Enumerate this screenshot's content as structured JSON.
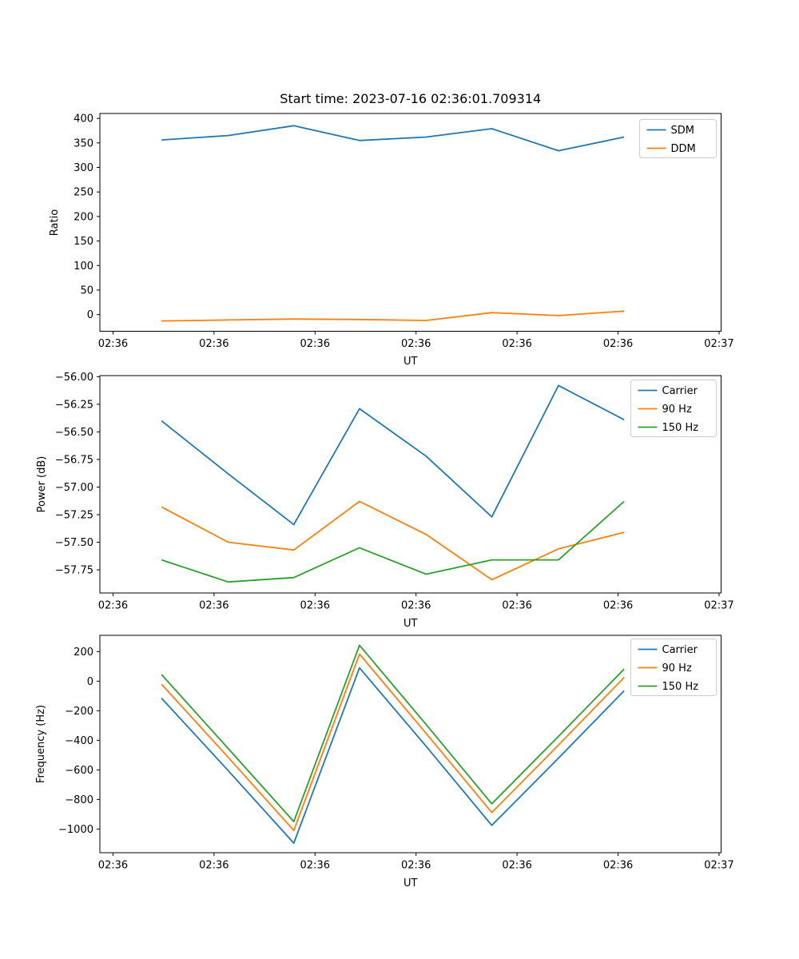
{
  "figure": {
    "title": "Start time: 2023-07-16 02:36:01.709314",
    "background": "#ffffff",
    "axis_color": "#000000",
    "legend_border_color": "#cccccc",
    "series_colors": {
      "blue": "#1f77b4",
      "orange": "#ff7f0e",
      "green": "#2ca02c"
    }
  },
  "chart_data": [
    {
      "type": "line",
      "title": "Start time: 2023-07-16 02:36:01.709314",
      "xlabel": "UT",
      "ylabel": "Ratio",
      "grid": false,
      "x_seconds_after_0236": [
        4.8,
        11.4,
        17.9,
        24.4,
        31.0,
        37.5,
        44.1,
        50.6
      ],
      "xlim": [
        -1.3,
        60.2
      ],
      "ylim": [
        -34,
        410
      ],
      "xtick_values": [
        0,
        10,
        20,
        30,
        40,
        50,
        60
      ],
      "xtick_labels": [
        "02:36",
        "02:36",
        "02:36",
        "02:36",
        "02:36",
        "02:36",
        "02:37"
      ],
      "ytick_values": [
        0,
        50,
        100,
        150,
        200,
        250,
        300,
        350,
        400
      ],
      "ytick_labels": [
        "0",
        "50",
        "100",
        "150",
        "200",
        "250",
        "300",
        "350",
        "400"
      ],
      "legend": {
        "position": "upper right",
        "entries": [
          "SDM",
          "DDM"
        ]
      },
      "series": [
        {
          "name": "SDM",
          "color": "#1f77b4",
          "values": [
            356,
            365,
            385,
            355,
            362,
            379,
            334,
            362
          ]
        },
        {
          "name": "DDM",
          "color": "#ff7f0e",
          "values": [
            -13,
            -11,
            -9,
            -10,
            -12,
            4,
            -2,
            7
          ]
        }
      ]
    },
    {
      "type": "line",
      "title": "",
      "xlabel": "UT",
      "ylabel": "Power (dB)",
      "grid": false,
      "x_seconds_after_0236": [
        4.8,
        11.4,
        17.9,
        24.4,
        31.0,
        37.5,
        44.1,
        50.6
      ],
      "xlim": [
        -1.3,
        60.2
      ],
      "ylim": [
        -57.96,
        -55.99
      ],
      "xtick_values": [
        0,
        10,
        20,
        30,
        40,
        50,
        60
      ],
      "xtick_labels": [
        "02:36",
        "02:36",
        "02:36",
        "02:36",
        "02:36",
        "02:36",
        "02:37"
      ],
      "ytick_values": [
        -56.0,
        -56.25,
        -56.5,
        -56.75,
        -57.0,
        -57.25,
        -57.5,
        -57.75
      ],
      "ytick_labels": [
        "−56.00",
        "−56.25",
        "−56.50",
        "−56.75",
        "−57.00",
        "−57.25",
        "−57.50",
        "−57.75"
      ],
      "legend": {
        "position": "upper right",
        "entries": [
          "Carrier",
          "90 Hz",
          "150 Hz"
        ]
      },
      "series": [
        {
          "name": "Carrier",
          "color": "#1f77b4",
          "values": [
            -56.4,
            -56.88,
            -57.34,
            -56.29,
            -56.72,
            -57.27,
            -56.08,
            -56.39
          ]
        },
        {
          "name": "90 Hz",
          "color": "#ff7f0e",
          "values": [
            -57.18,
            -57.5,
            -57.57,
            -57.13,
            -57.43,
            -57.84,
            -57.56,
            -57.41
          ]
        },
        {
          "name": "150 Hz",
          "color": "#2ca02c",
          "values": [
            -57.66,
            -57.86,
            -57.82,
            -57.55,
            -57.79,
            -57.66,
            -57.66,
            -57.13
          ]
        }
      ]
    },
    {
      "type": "line",
      "title": "",
      "xlabel": "UT",
      "ylabel": "Frequency (Hz)",
      "grid": false,
      "x_seconds_after_0236": [
        4.8,
        11.4,
        17.9,
        24.4,
        31.0,
        37.5,
        44.1,
        50.6
      ],
      "xlim": [
        -1.3,
        60.2
      ],
      "ylim": [
        -1160,
        310
      ],
      "xtick_values": [
        0,
        10,
        20,
        30,
        40,
        50,
        60
      ],
      "xtick_labels": [
        "02:36",
        "02:36",
        "02:36",
        "02:36",
        "02:36",
        "02:36",
        "02:37"
      ],
      "ytick_values": [
        200,
        0,
        -200,
        -400,
        -600,
        -800,
        -1000
      ],
      "ytick_labels": [
        "200",
        "0",
        "−200",
        "−400",
        "−600",
        "−800",
        "−1000"
      ],
      "legend": {
        "position": "upper right",
        "entries": [
          "Carrier",
          "90 Hz",
          "150 Hz"
        ]
      },
      "series": [
        {
          "name": "Carrier",
          "color": "#1f77b4",
          "values": [
            -115,
            -605,
            -1095,
            90,
            -440,
            -975,
            -520,
            -65
          ]
        },
        {
          "name": "90 Hz",
          "color": "#ff7f0e",
          "values": [
            -20,
            -515,
            -1010,
            183,
            -353,
            -888,
            -432,
            25
          ]
        },
        {
          "name": "150 Hz",
          "color": "#2ca02c",
          "values": [
            45,
            -455,
            -950,
            243,
            -293,
            -829,
            -373,
            82
          ]
        }
      ]
    }
  ]
}
